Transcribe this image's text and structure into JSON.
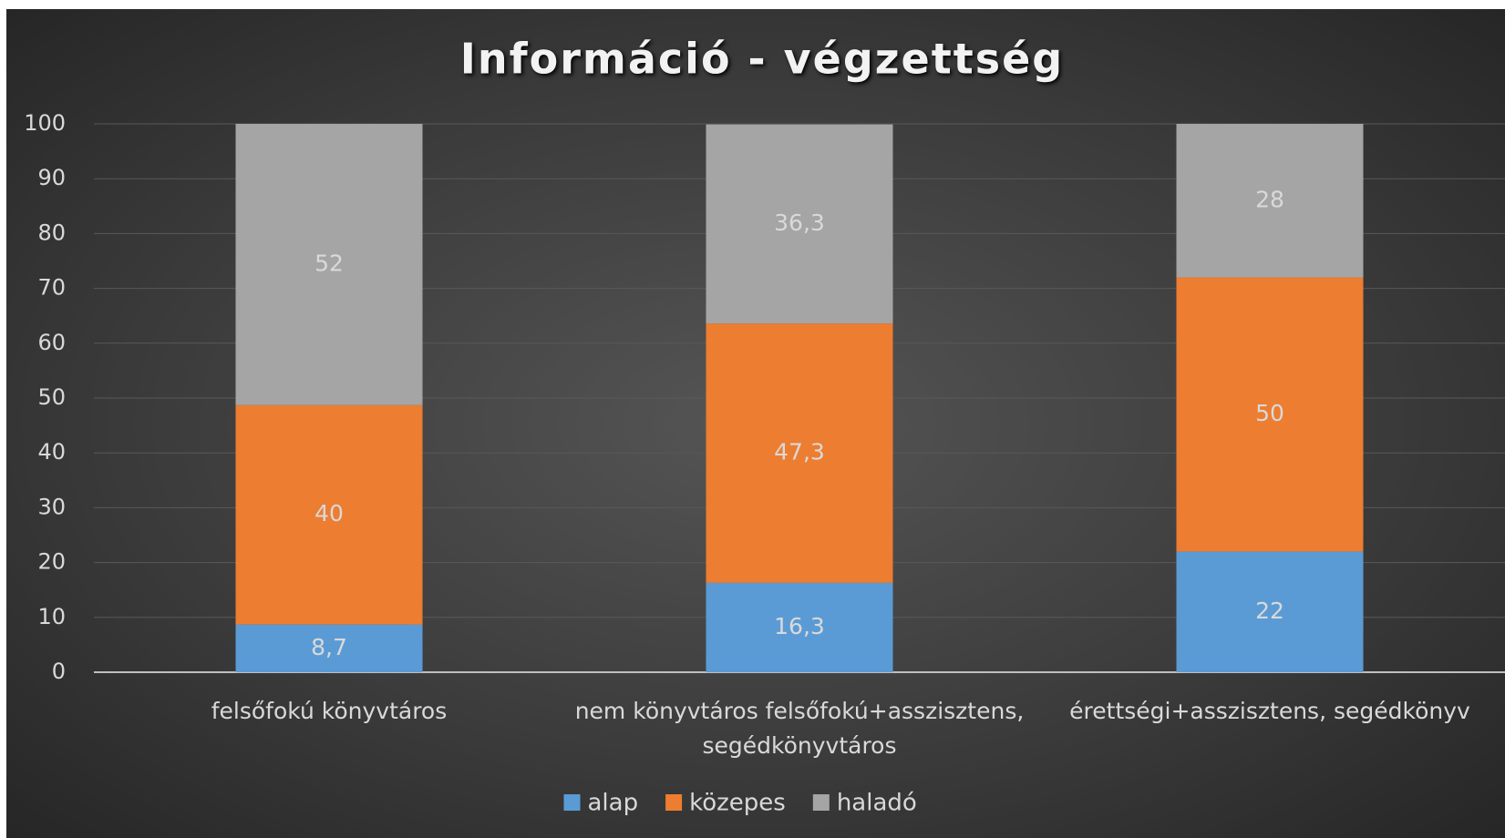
{
  "chart_data": {
    "type": "stacked_bar",
    "title": "Információ - végzettség",
    "categories": [
      "felsőfokú könyvtáros",
      "nem könyvtáros felsőfokú+asszisztens, segédkönyvtáros",
      "érettségi+asszisztens, segédkönyv"
    ],
    "series": [
      {
        "name": "alap",
        "color": "#5b9bd5",
        "values": [
          8.7,
          16.3,
          22
        ],
        "value_labels": [
          "8,7",
          "16,3",
          "22"
        ]
      },
      {
        "name": "közepes",
        "color": "#ed7d31",
        "values": [
          40,
          47.3,
          50
        ],
        "value_labels": [
          "40",
          "47,3",
          "50"
        ]
      },
      {
        "name": "haladó",
        "color": "#a5a5a5",
        "values": [
          52,
          36.3,
          28
        ],
        "value_labels": [
          "52",
          "36,3",
          "28"
        ]
      }
    ],
    "ylim": [
      0,
      100
    ],
    "yticks": [
      0,
      10,
      20,
      30,
      40,
      50,
      60,
      70,
      80,
      90,
      100
    ],
    "grid": true,
    "legend": "bottom"
  }
}
